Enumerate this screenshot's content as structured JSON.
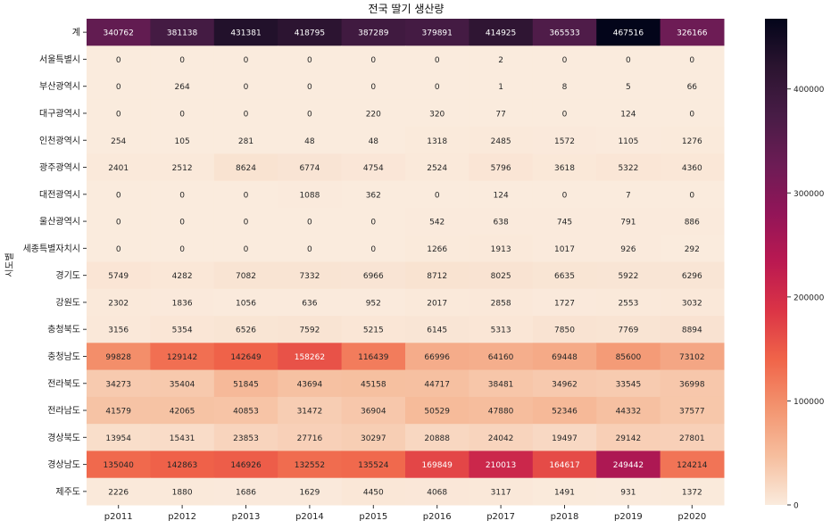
{
  "chart_data": {
    "type": "heatmap",
    "title": "전국 딸기 생산량",
    "xlabel": "",
    "ylabel": "시도별",
    "x": [
      "p2011",
      "p2012",
      "p2013",
      "p2014",
      "p2015",
      "p2016",
      "p2017",
      "p2018",
      "p2019",
      "p2020"
    ],
    "y": [
      "계",
      "서울특별시",
      "부산광역시",
      "대구광역시",
      "인천광역시",
      "광주광역시",
      "대전광역시",
      "울산광역시",
      "세종특별자치시",
      "경기도",
      "강원도",
      "충청북도",
      "충청남도",
      "전라북도",
      "전라남도",
      "경상북도",
      "경상남도",
      "제주도"
    ],
    "values": [
      [
        340762,
        381138,
        431381,
        418795,
        387289,
        379891,
        414925,
        365533,
        467516,
        326166
      ],
      [
        0,
        0,
        0,
        0,
        0,
        0,
        2,
        0,
        0,
        0
      ],
      [
        0,
        264,
        0,
        0,
        0,
        0,
        1,
        8,
        5,
        66
      ],
      [
        0,
        0,
        0,
        0,
        220,
        320,
        77,
        0,
        124,
        0
      ],
      [
        254,
        105,
        281,
        48,
        48,
        1318,
        2485,
        1572,
        1105,
        1276
      ],
      [
        2401,
        2512,
        8624,
        6774,
        4754,
        2524,
        5796,
        3618,
        5322,
        4360
      ],
      [
        0,
        0,
        0,
        1088,
        362,
        0,
        124,
        0,
        7,
        0
      ],
      [
        0,
        0,
        0,
        0,
        0,
        542,
        638,
        745,
        791,
        886
      ],
      [
        0,
        0,
        0,
        0,
        0,
        1266,
        1913,
        1017,
        926,
        292
      ],
      [
        5749,
        4282,
        7082,
        7332,
        6966,
        8712,
        8025,
        6635,
        5922,
        6296
      ],
      [
        2302,
        1836,
        1056,
        636,
        952,
        2017,
        2858,
        1727,
        2553,
        3032
      ],
      [
        3156,
        5354,
        6526,
        7592,
        5215,
        6145,
        5313,
        7850,
        7769,
        8894
      ],
      [
        99828,
        129142,
        142649,
        158262,
        116439,
        66996,
        64160,
        69448,
        85600,
        73102
      ],
      [
        34273,
        35404,
        51845,
        43694,
        45158,
        44717,
        38481,
        34962,
        33545,
        36998
      ],
      [
        41579,
        42065,
        40853,
        31472,
        36904,
        50529,
        47880,
        52346,
        44332,
        37577
      ],
      [
        13954,
        15431,
        23853,
        27716,
        30297,
        20888,
        24042,
        19497,
        29142,
        27801
      ],
      [
        135040,
        142863,
        146926,
        132552,
        135524,
        169849,
        210013,
        164617,
        249442,
        124214
      ],
      [
        2226,
        1880,
        1686,
        1629,
        4450,
        4068,
        3117,
        1491,
        931,
        1372
      ]
    ],
    "colorbar": {
      "ticks": [
        0,
        100000,
        200000,
        300000,
        400000
      ],
      "colormap": "rocket_r"
    }
  }
}
